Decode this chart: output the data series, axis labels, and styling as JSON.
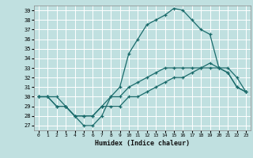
{
  "xlabel": "Humidex (Indice chaleur)",
  "bg_color": "#c0e0e0",
  "grid_color": "#ffffff",
  "line_color": "#1a6b6b",
  "xlim": [
    -0.5,
    23.5
  ],
  "ylim": [
    26.5,
    39.5
  ],
  "xticks": [
    0,
    1,
    2,
    3,
    4,
    5,
    6,
    7,
    8,
    9,
    10,
    11,
    12,
    13,
    14,
    15,
    16,
    17,
    18,
    19,
    20,
    21,
    22,
    23
  ],
  "yticks": [
    27,
    28,
    29,
    30,
    31,
    32,
    33,
    34,
    35,
    36,
    37,
    38,
    39
  ],
  "curve1_x": [
    0,
    1,
    2,
    3,
    4,
    5,
    6,
    7,
    8,
    9,
    10,
    11,
    12,
    13,
    14,
    15,
    16,
    17,
    18,
    19,
    20,
    21,
    22,
    23
  ],
  "curve1_y": [
    30,
    30,
    30,
    29,
    28,
    27,
    27,
    28,
    30,
    31,
    34.5,
    36,
    37.5,
    38,
    38.5,
    39.2,
    39,
    38,
    37,
    36.5,
    33,
    32.5,
    31,
    30.5
  ],
  "curve2_x": [
    0,
    1,
    2,
    3,
    4,
    5,
    6,
    7,
    8,
    9,
    10,
    11,
    12,
    13,
    14,
    15,
    16,
    17,
    18,
    19,
    20,
    21,
    22,
    23
  ],
  "curve2_y": [
    30,
    30,
    29,
    29,
    28,
    28,
    28,
    29,
    30,
    30,
    31,
    31.5,
    32,
    32.5,
    33,
    33,
    33,
    33,
    33,
    33.5,
    33,
    32.5,
    31,
    30.5
  ],
  "curve3_x": [
    0,
    1,
    2,
    3,
    4,
    5,
    6,
    7,
    8,
    9,
    10,
    11,
    12,
    13,
    14,
    15,
    16,
    17,
    18,
    19,
    20,
    21,
    22,
    23
  ],
  "curve3_y": [
    30,
    30,
    29,
    29,
    28,
    28,
    28,
    29,
    29,
    29,
    30,
    30,
    30.5,
    31,
    31.5,
    32,
    32,
    32.5,
    33,
    33,
    33,
    33,
    32,
    30.5
  ]
}
